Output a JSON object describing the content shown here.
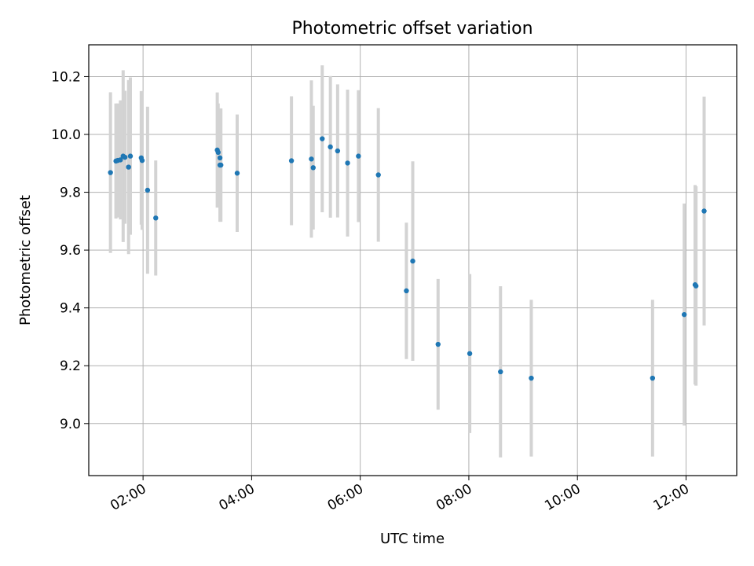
{
  "chart_data": {
    "type": "scatter",
    "title": "Photometric offset variation",
    "xlabel": "UTC time",
    "ylabel": "Photometric offset",
    "x_tick_labels": [
      "02:00",
      "04:00",
      "06:00",
      "08:00",
      "10:00",
      "12:00"
    ],
    "y_tick_labels": [
      "9.0",
      "9.2",
      "9.4",
      "9.6",
      "9.8",
      "10.0",
      "10.2"
    ],
    "xlim": [
      "01:00",
      "12:56"
    ],
    "ylim": [
      8.82,
      10.31
    ],
    "grid": true,
    "error_bars": true,
    "colors": {
      "marker": "#1f77b4",
      "errorbar": "#d3d3d3",
      "grid": "#b0b0b0"
    },
    "points": [
      {
        "x": "01:24",
        "y": 9.868,
        "err": 0.278
      },
      {
        "x": "01:30",
        "y": 9.908,
        "err": 0.199
      },
      {
        "x": "01:32",
        "y": 9.91,
        "err": 0.197
      },
      {
        "x": "01:35",
        "y": 9.912,
        "err": 0.206
      },
      {
        "x": "01:38",
        "y": 9.925,
        "err": 0.297
      },
      {
        "x": "01:40",
        "y": 9.921,
        "err": 0.23
      },
      {
        "x": "01:44",
        "y": 9.887,
        "err": 0.301
      },
      {
        "x": "01:46",
        "y": 9.925,
        "err": 0.272
      },
      {
        "x": "01:58",
        "y": 9.919,
        "err": 0.231
      },
      {
        "x": "01:59",
        "y": 9.91,
        "err": 0.24
      },
      {
        "x": "02:05",
        "y": 9.807,
        "err": 0.289
      },
      {
        "x": "02:14",
        "y": 9.711,
        "err": 0.199
      },
      {
        "x": "03:22",
        "y": 9.946,
        "err": 0.199
      },
      {
        "x": "03:23",
        "y": 9.938,
        "err": 0.169
      },
      {
        "x": "03:25",
        "y": 9.919,
        "err": 0.169
      },
      {
        "x": "03:25",
        "y": 9.894,
        "err": 0.196
      },
      {
        "x": "03:26",
        "y": 9.894,
        "err": 0.196
      },
      {
        "x": "03:44",
        "y": 9.866,
        "err": 0.203
      },
      {
        "x": "04:44",
        "y": 9.909,
        "err": 0.223
      },
      {
        "x": "05:06",
        "y": 9.915,
        "err": 0.272
      },
      {
        "x": "05:08",
        "y": 9.885,
        "err": 0.214
      },
      {
        "x": "05:18",
        "y": 9.985,
        "err": 0.254
      },
      {
        "x": "05:27",
        "y": 9.957,
        "err": 0.245
      },
      {
        "x": "05:35",
        "y": 9.943,
        "err": 0.23
      },
      {
        "x": "05:46",
        "y": 9.901,
        "err": 0.254
      },
      {
        "x": "05:58",
        "y": 9.925,
        "err": 0.228
      },
      {
        "x": "06:20",
        "y": 9.86,
        "err": 0.231
      },
      {
        "x": "06:51",
        "y": 9.459,
        "err": 0.236
      },
      {
        "x": "06:58",
        "y": 9.562,
        "err": 0.345
      },
      {
        "x": "07:26",
        "y": 9.274,
        "err": 0.226
      },
      {
        "x": "08:01",
        "y": 9.242,
        "err": 0.275
      },
      {
        "x": "08:35",
        "y": 9.179,
        "err": 0.296
      },
      {
        "x": "09:09",
        "y": 9.157,
        "err": 0.271
      },
      {
        "x": "11:23",
        "y": 9.157,
        "err": 0.271
      },
      {
        "x": "11:58",
        "y": 9.377,
        "err": 0.384
      },
      {
        "x": "12:10",
        "y": 9.48,
        "err": 0.345
      },
      {
        "x": "12:11",
        "y": 9.476,
        "err": 0.345
      },
      {
        "x": "12:20",
        "y": 9.735,
        "err": 0.396
      }
    ]
  }
}
